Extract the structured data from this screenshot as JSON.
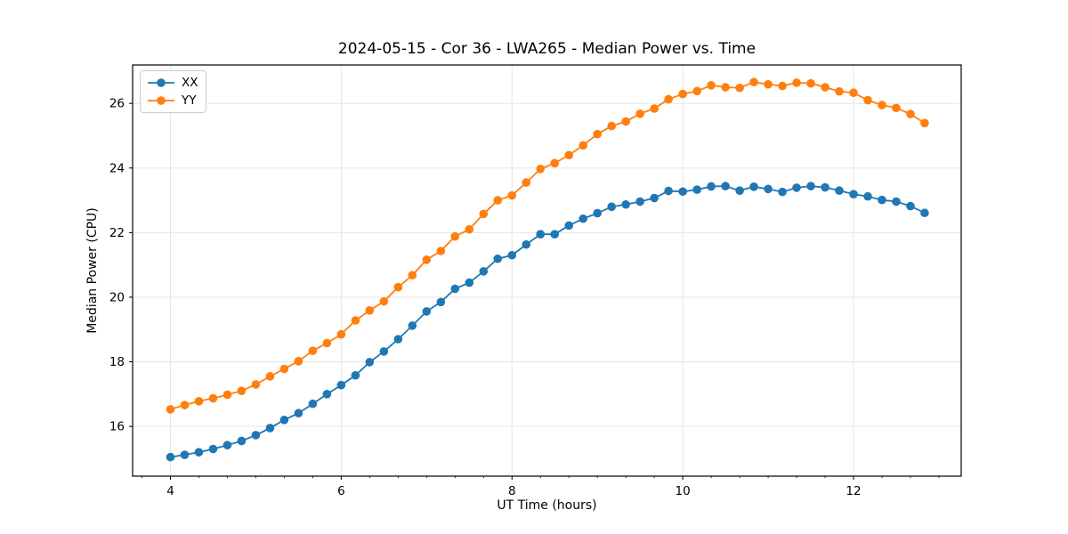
{
  "figure": {
    "title": "2024-05-15 - Cor 36 - LWA265 - Median Power vs. Time"
  },
  "chart_data": {
    "type": "line",
    "title": "2024-05-15 - Cor 36 - LWA265 - Median Power vs. Time",
    "xlabel": "UT Time (hours)",
    "ylabel": "Median Power (CPU)",
    "xlim": [
      3.557,
      13.261
    ],
    "ylim": [
      14.46,
      27.19
    ],
    "xticks": [
      4,
      6,
      8,
      10,
      12
    ],
    "yticks": [
      16,
      18,
      20,
      22,
      24,
      26
    ],
    "x_minor_tick_step": 0.3333,
    "grid": true,
    "legend_position": "upper-left",
    "marker": "circle",
    "x": [
      4.0,
      4.167,
      4.333,
      4.5,
      4.667,
      4.833,
      5.0,
      5.167,
      5.333,
      5.5,
      5.667,
      5.833,
      6.0,
      6.167,
      6.333,
      6.5,
      6.667,
      6.833,
      7.0,
      7.167,
      7.333,
      7.5,
      7.667,
      7.833,
      8.0,
      8.167,
      8.333,
      8.5,
      8.667,
      8.833,
      9.0,
      9.167,
      9.333,
      9.5,
      9.667,
      9.833,
      10.0,
      10.167,
      10.333,
      10.5,
      10.667,
      10.833,
      11.0,
      11.167,
      11.333,
      11.5,
      11.667,
      11.833,
      12.0,
      12.167,
      12.333,
      12.5,
      12.667,
      12.833
    ],
    "series": [
      {
        "name": "XX",
        "color": "#1f77b4",
        "values": [
          15.05,
          15.12,
          15.2,
          15.3,
          15.42,
          15.55,
          15.73,
          15.95,
          16.2,
          16.41,
          16.7,
          17.0,
          17.28,
          17.58,
          17.99,
          18.32,
          18.7,
          19.12,
          19.56,
          19.85,
          20.26,
          20.45,
          20.8,
          21.19,
          21.3,
          21.63,
          21.95,
          21.95,
          22.22,
          22.43,
          22.6,
          22.8,
          22.87,
          22.96,
          23.07,
          23.29,
          23.27,
          23.33,
          23.43,
          23.44,
          23.3,
          23.42,
          23.35,
          23.26,
          23.39,
          23.44,
          23.4,
          23.3,
          23.19,
          23.12,
          23.01,
          22.96,
          22.82,
          22.61
        ]
      },
      {
        "name": "YY",
        "color": "#ff7f0e",
        "values": [
          16.53,
          16.66,
          16.78,
          16.87,
          16.98,
          17.1,
          17.3,
          17.55,
          17.78,
          18.02,
          18.34,
          18.58,
          18.85,
          19.28,
          19.59,
          19.87,
          20.31,
          20.68,
          21.16,
          21.43,
          21.88,
          22.1,
          22.58,
          23.0,
          23.15,
          23.55,
          23.97,
          24.15,
          24.4,
          24.7,
          25.05,
          25.3,
          25.44,
          25.68,
          25.84,
          26.13,
          26.29,
          26.38,
          26.56,
          26.5,
          26.48,
          26.66,
          26.59,
          26.54,
          26.64,
          26.62,
          26.5,
          26.37,
          26.33,
          26.1,
          25.95,
          25.86,
          25.67,
          25.39
        ]
      }
    ]
  },
  "colors": {
    "grid": "#e5e5e5",
    "spine": "#000000",
    "background": "#ffffff"
  }
}
